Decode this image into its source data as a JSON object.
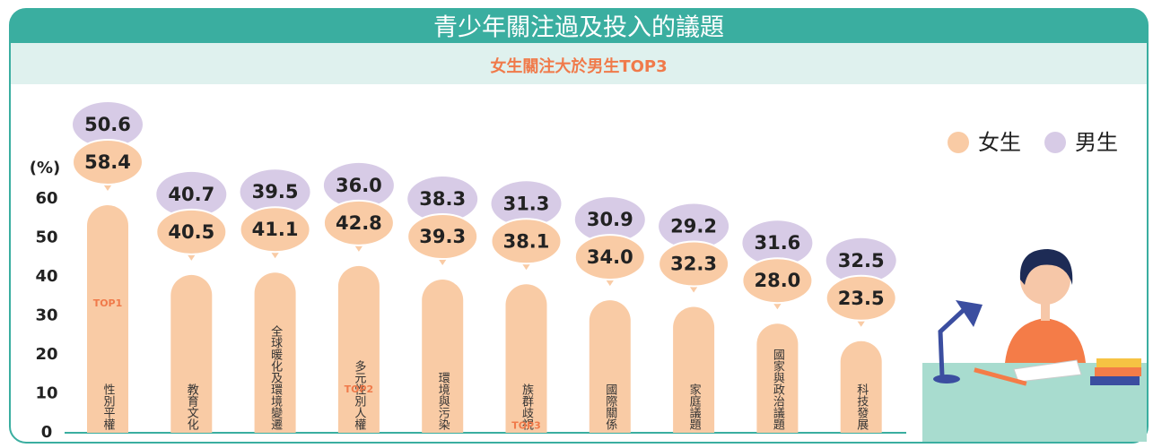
{
  "chart_data": {
    "type": "bar",
    "title": "青少年關注過及投入的議題",
    "subtitle": "女生關注大於男生TOP3",
    "y_label": "(%)",
    "categories": [
      "性別平權",
      "教育文化",
      "全球暖化及環境變遷",
      "多元性別人權",
      "環境與污染",
      "族群歧視",
      "國際關係",
      "家庭議題",
      "國家與政治議題",
      "科技發展"
    ],
    "series": [
      {
        "name": "女生",
        "color": "#f9cba5",
        "values": [
          58.4,
          40.5,
          41.1,
          42.8,
          39.3,
          38.1,
          34.0,
          32.3,
          28.0,
          23.5
        ],
        "value_labels": [
          "58.4",
          "40.5",
          "41.1",
          "42.8",
          "39.3",
          "38.1",
          "34.0",
          "32.3",
          "28.0",
          "23.5"
        ]
      },
      {
        "name": "男生",
        "color": "#d7cbe6",
        "values": [
          50.6,
          40.7,
          39.5,
          36.0,
          38.3,
          31.3,
          30.9,
          29.2,
          31.6,
          32.5
        ],
        "value_labels": [
          "50.6",
          "40.7",
          "39.5",
          "36.0",
          "38.3",
          "31.3",
          "30.9",
          "29.2",
          "31.6",
          "32.5"
        ]
      }
    ],
    "annotations": [
      {
        "text": "TOP1",
        "category": "性別平權"
      },
      {
        "text": "TOP2",
        "category": "多元性別人權"
      },
      {
        "text": "TOP3",
        "category": "族群歧視"
      }
    ],
    "ylim": [
      0,
      60
    ],
    "yticks": [
      0,
      10,
      20,
      30,
      40,
      50,
      60
    ],
    "legend": "top-right"
  }
}
